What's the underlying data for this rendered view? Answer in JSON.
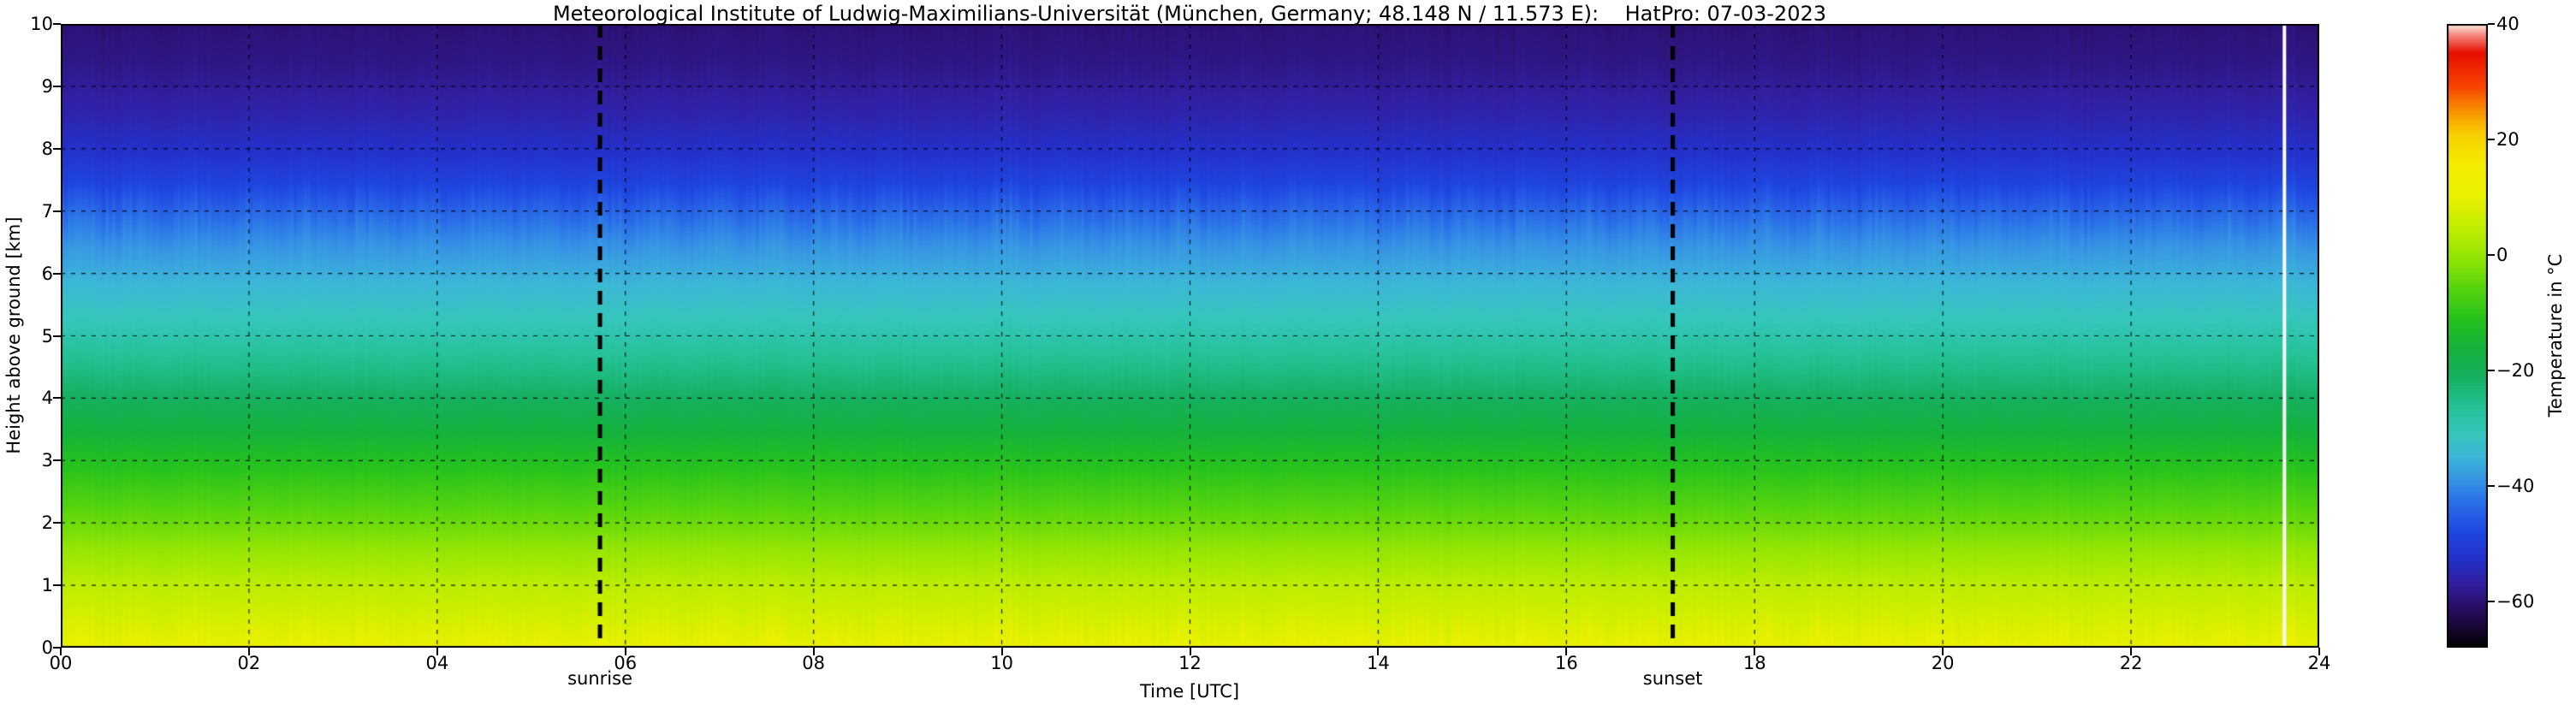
{
  "chart_data": {
    "type": "heatmap",
    "title": "Meteorological Institute of Ludwig-Maximilians-Universität (München, Germany; 48.148 N / 11.573 E):    HatPro: 07-03-2023",
    "xlabel": "Time [UTC]",
    "ylabel": "Height above ground [km]",
    "colorbar_label": "Temperature in °C",
    "x_range": [
      0,
      24
    ],
    "y_range": [
      0,
      10
    ],
    "colorbar_range": [
      -68,
      40
    ],
    "grid": true,
    "grid_style": "dashed",
    "x_tick_values": [
      0,
      2,
      4,
      6,
      8,
      10,
      12,
      14,
      16,
      18,
      20,
      22,
      24
    ],
    "x_tick_labels": [
      "00",
      "02",
      "04",
      "06",
      "08",
      "10",
      "12",
      "14",
      "16",
      "18",
      "20",
      "22",
      "24"
    ],
    "y_tick_values": [
      0,
      1,
      2,
      3,
      4,
      5,
      6,
      7,
      8,
      9,
      10
    ],
    "y_tick_labels": [
      "0",
      "1",
      "2",
      "3",
      "4",
      "5",
      "6",
      "7",
      "8",
      "9",
      "10"
    ],
    "colorbar_tick_values": [
      40,
      20,
      0,
      -20,
      -40,
      -60
    ],
    "colorbar_tick_labels": [
      "40",
      "20",
      "0",
      "−20",
      "−40",
      "−60"
    ],
    "annotations": {
      "sunrise": {
        "label": "sunrise",
        "time_utc": 5.73
      },
      "sunset": {
        "label": "sunset",
        "time_utc": 17.13
      },
      "data_gap": {
        "time_utc": 23.63
      }
    },
    "time_variation": "temperature field nearly constant over the day; vertical gradient dominates",
    "profile": {
      "heights_km": [
        0,
        0.25,
        0.5,
        0.75,
        1.0,
        1.5,
        2.0,
        2.5,
        3.0,
        3.5,
        4.0,
        4.5,
        5.0,
        5.5,
        6.0,
        6.5,
        7.0,
        7.5,
        8.0,
        8.5,
        9.0,
        9.5,
        10.0
      ],
      "temps_c": [
        10,
        8.5,
        7,
        5.5,
        4,
        0.5,
        -4,
        -8,
        -12,
        -16.5,
        -21,
        -25,
        -29,
        -32.5,
        -36,
        -39.5,
        -44,
        -49,
        -53,
        -55.5,
        -57.5,
        -59,
        -60
      ]
    },
    "colormap_stops": [
      {
        "t": -68,
        "color": "#000000"
      },
      {
        "t": -65,
        "color": "#16062e"
      },
      {
        "t": -61,
        "color": "#2b0d66"
      },
      {
        "t": -57,
        "color": "#321e9e"
      },
      {
        "t": -53,
        "color": "#2430c8"
      },
      {
        "t": -48,
        "color": "#1f46e0"
      },
      {
        "t": -43,
        "color": "#2a6ee8"
      },
      {
        "t": -39,
        "color": "#3695e4"
      },
      {
        "t": -35,
        "color": "#3cb6d8"
      },
      {
        "t": -31,
        "color": "#35c6bc"
      },
      {
        "t": -26,
        "color": "#23c193"
      },
      {
        "t": -21,
        "color": "#15b060"
      },
      {
        "t": -16,
        "color": "#14b23b"
      },
      {
        "t": -11,
        "color": "#27c31d"
      },
      {
        "t": -6,
        "color": "#55d40e"
      },
      {
        "t": -1,
        "color": "#8ce405"
      },
      {
        "t": 4,
        "color": "#bced00"
      },
      {
        "t": 10,
        "color": "#eaf100"
      },
      {
        "t": 16,
        "color": "#f5ec00"
      },
      {
        "t": 21,
        "color": "#f8cf00"
      },
      {
        "t": 25,
        "color": "#f89000"
      },
      {
        "t": 29,
        "color": "#f84700"
      },
      {
        "t": 35,
        "color": "#e90d00"
      },
      {
        "t": 38,
        "color": "#f4857c"
      },
      {
        "t": 40,
        "color": "#fcf0e4"
      }
    ]
  }
}
